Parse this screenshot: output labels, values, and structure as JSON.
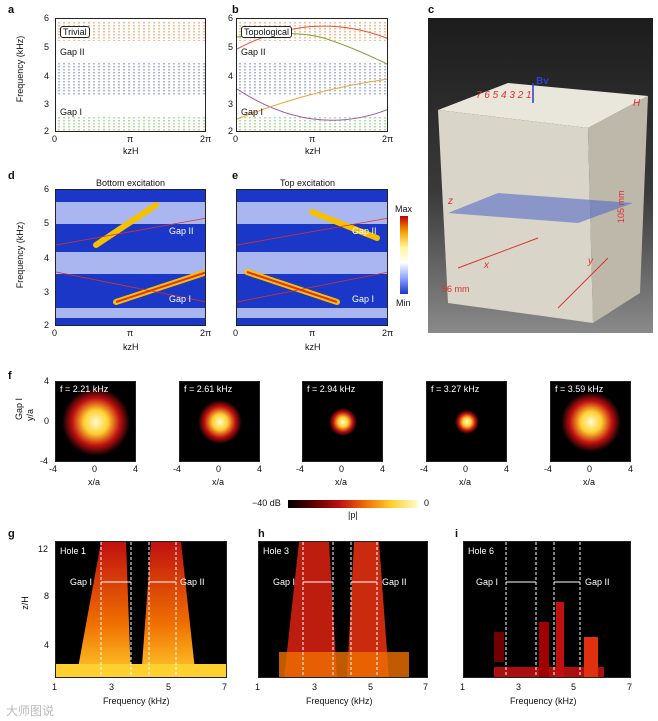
{
  "panel_labels": {
    "a": "a",
    "b": "b",
    "c": "c",
    "d": "d",
    "e": "e",
    "f": "f",
    "g": "g",
    "h": "h",
    "i": "i"
  },
  "panel_a": {
    "tag": "Trivial",
    "gap2": "Gap II",
    "gap1": "Gap I",
    "ylabel": "Frequency (kHz)",
    "xlabel": "kzH",
    "yticks": [
      "6",
      "5",
      "4",
      "3",
      "2"
    ],
    "xticks": [
      "0",
      "π",
      "2π"
    ]
  },
  "panel_b": {
    "tag": "Topological",
    "gap2": "Gap II",
    "gap1": "Gap I",
    "xlabel": "kzH",
    "yticks": [
      "6",
      "5",
      "4",
      "3",
      "2"
    ],
    "xticks": [
      "0",
      "π",
      "2π"
    ]
  },
  "panel_c": {
    "bv": "Bv",
    "hole_numbers": "7 6 5 4 3 2 1",
    "h_label": "H",
    "y_label": "y",
    "x_label": "x",
    "z_label": "z",
    "dim1": "105 mm",
    "dim2": "56 mm"
  },
  "panel_d": {
    "title": "Bottom excitation",
    "gap2": "Gap II",
    "gap1": "Gap I",
    "ylabel": "Frequency (kHz)",
    "xlabel": "kzH",
    "yticks": [
      "6",
      "5",
      "4",
      "3",
      "2"
    ],
    "xticks": [
      "0",
      "π",
      "2π"
    ]
  },
  "panel_e": {
    "title": "Top excitation",
    "gap2": "Gap II",
    "gap1": "Gap I",
    "xlabel": "kzH",
    "xticks": [
      "0",
      "π",
      "2π"
    ]
  },
  "colorbar_de": {
    "max": "Max",
    "min": "Min"
  },
  "panel_f": {
    "ylabel": "Gap I",
    "ylabel2": "y/a",
    "xlabel": "x/a",
    "maps": [
      "f = 2.21 kHz",
      "f = 2.61 kHz",
      "f = 2.94 kHz",
      "f = 3.27 kHz",
      "f = 3.59 kHz"
    ],
    "ticks": [
      "-4",
      "0",
      "4"
    ],
    "yticks": [
      "4",
      "0",
      "-4"
    ]
  },
  "colorbar_f": {
    "min": "−40 dB",
    "max": "0",
    "label": "|p|"
  },
  "panel_g": {
    "tag": "Hole 1",
    "gap1": "Gap I",
    "gap2": "Gap II",
    "ylabel": "z/H",
    "xlabel": "Frequency (kHz)",
    "yticks": [
      "12",
      "8",
      "4"
    ],
    "xticks": [
      "1",
      "3",
      "5",
      "7"
    ]
  },
  "panel_h": {
    "tag": "Hole 3",
    "gap1": "Gap I",
    "gap2": "Gap II",
    "xlabel": "Frequency (kHz)",
    "xticks": [
      "1",
      "3",
      "5",
      "7"
    ]
  },
  "panel_i": {
    "tag": "Hole 6",
    "gap1": "Gap I",
    "gap2": "Gap II",
    "xlabel": "Frequency (kHz)",
    "xticks": [
      "1",
      "3",
      "5",
      "7"
    ]
  },
  "watermark": "大师图说"
}
